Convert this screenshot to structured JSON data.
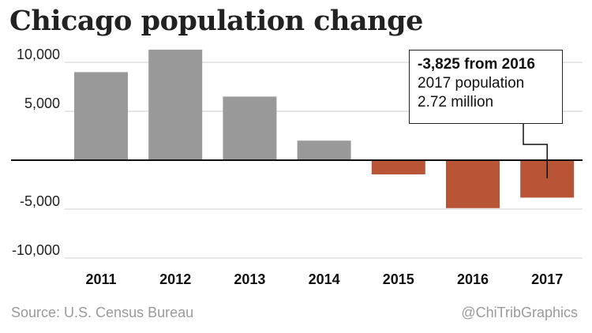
{
  "header": {
    "title": "Chicago population change"
  },
  "footer": {
    "source": "Source: U.S. Census Bureau",
    "credit": "@ChiTribGraphics"
  },
  "callout": {
    "headline": "-3,825 from 2016",
    "line1": "2017 population",
    "line2": "2.72 million"
  },
  "chart_data": {
    "type": "bar",
    "title": "Chicago population change",
    "categories": [
      "2011",
      "2012",
      "2013",
      "2014",
      "2015",
      "2016",
      "2017"
    ],
    "values": [
      9000,
      11300,
      6500,
      2000,
      -1450,
      -4900,
      -3825
    ],
    "ylim": [
      -10000,
      11500
    ],
    "yticks": [
      10000,
      5000,
      0,
      -5000,
      -10000
    ],
    "ytick_labels": [
      "10,000",
      "5,000",
      "",
      "-5,000",
      "-10,000"
    ],
    "grid": true,
    "colors": {
      "positive": "#999999",
      "negative": "#b85537",
      "zero_line": "#111111",
      "grid": "#cccccc"
    }
  }
}
